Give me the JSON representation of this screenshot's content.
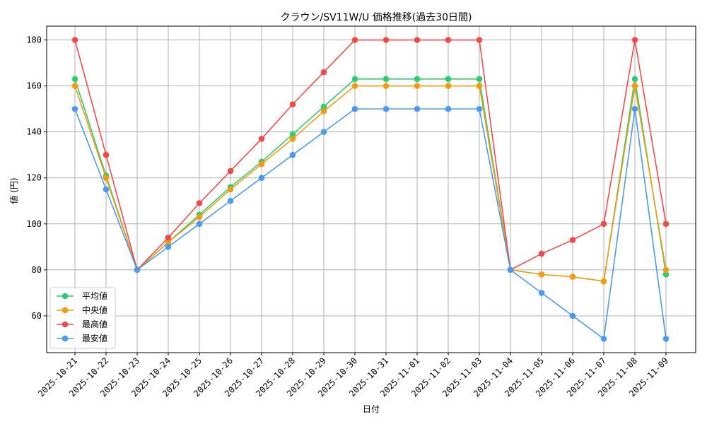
{
  "chart_data": {
    "type": "line",
    "title": "クラウン/SV11W/U 価格推移(過去30日間)",
    "xlabel": "日付",
    "ylabel": "値 (円)",
    "ylim": [
      44,
      186
    ],
    "yticks": [
      60,
      80,
      100,
      120,
      140,
      160,
      180
    ],
    "grid": true,
    "legend_position": "lower-left",
    "x": [
      "2025-10-21",
      "2025-10-22",
      "2025-10-23",
      "2025-10-24",
      "2025-10-25",
      "2025-10-26",
      "2025-10-27",
      "2025-10-28",
      "2025-10-29",
      "2025-10-30",
      "2025-10-31",
      "2025-11-01",
      "2025-11-02",
      "2025-11-03",
      "2025-11-04",
      "2025-11-05",
      "2025-11-06",
      "2025-11-07",
      "2025-11-08",
      "2025-11-09"
    ],
    "series": [
      {
        "name": "平均値",
        "color": "#2ecc71",
        "values": [
          163,
          121,
          80,
          92,
          104,
          116,
          127,
          139,
          151,
          163,
          163,
          163,
          163,
          163,
          80,
          78,
          77,
          75,
          163,
          78
        ]
      },
      {
        "name": "中央値",
        "color": "#f39c12",
        "values": [
          160,
          120,
          80,
          92,
          103,
          115,
          126,
          137,
          149,
          160,
          160,
          160,
          160,
          160,
          80,
          78,
          77,
          75,
          160,
          80
        ]
      },
      {
        "name": "最高値",
        "color": "#ef4b4b",
        "values": [
          180,
          130,
          80,
          94,
          109,
          123,
          137,
          152,
          166,
          180,
          180,
          180,
          180,
          180,
          80,
          87,
          93,
          100,
          180,
          100
        ]
      },
      {
        "name": "最安値",
        "color": "#4a9af0",
        "values": [
          150,
          115,
          80,
          90,
          100,
          110,
          120,
          130,
          140,
          150,
          150,
          150,
          150,
          150,
          80,
          70,
          60,
          50,
          150,
          50
        ]
      }
    ]
  }
}
